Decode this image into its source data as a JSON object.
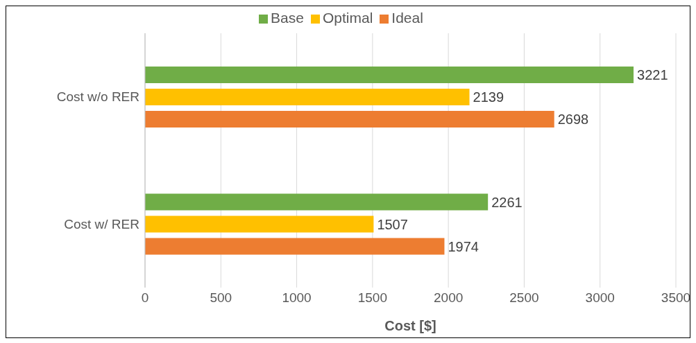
{
  "chart_data": {
    "type": "bar",
    "orientation": "horizontal",
    "xlabel": "Cost [$]",
    "categories": [
      "Cost w/o RER",
      "Cost w/ RER"
    ],
    "series": [
      {
        "name": "Base",
        "color": "#70ad47",
        "values": [
          3221,
          2261
        ]
      },
      {
        "name": "Optimal",
        "color": "#ffc000",
        "values": [
          2139,
          1507
        ]
      },
      {
        "name": "Ideal",
        "color": "#ed7d31",
        "values": [
          2698,
          1974
        ]
      }
    ],
    "xlim": [
      0,
      3500
    ],
    "xticks": [
      0,
      500,
      1000,
      1500,
      2000,
      2500,
      3000,
      3500
    ],
    "grid": "x",
    "legend": "top",
    "data_labels": true
  }
}
